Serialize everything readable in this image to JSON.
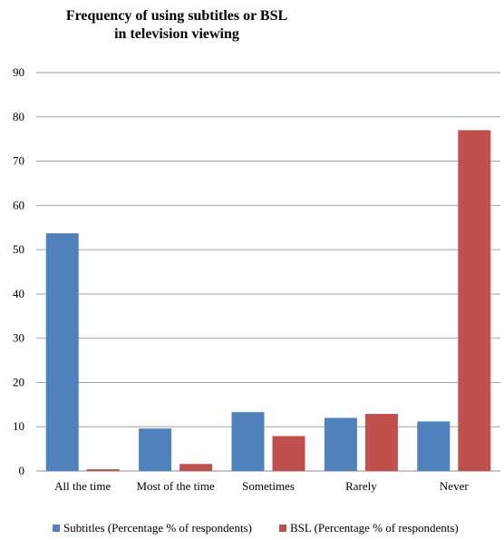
{
  "chart_data": {
    "type": "bar",
    "title_lines": [
      "Frequency of using subtitles or BSL",
      "in television viewing"
    ],
    "categories": [
      "All the time",
      "Most of the time",
      "Sometimes",
      "Rarely",
      "Never"
    ],
    "series": [
      {
        "name": "Subtitles (Percentage % of respondents)",
        "color": "#4f81bd",
        "values": [
          53.7,
          9.6,
          13.3,
          12.0,
          11.2
        ]
      },
      {
        "name": "BSL (Percentage % of respondents)",
        "color": "#c0504d",
        "values": [
          0.4,
          1.6,
          7.9,
          12.9,
          77.0
        ]
      }
    ],
    "ylim": [
      0,
      90
    ],
    "yticks": [
      0,
      10,
      20,
      30,
      40,
      50,
      60,
      70,
      80,
      90
    ],
    "grid": true,
    "legend_position": "bottom"
  }
}
